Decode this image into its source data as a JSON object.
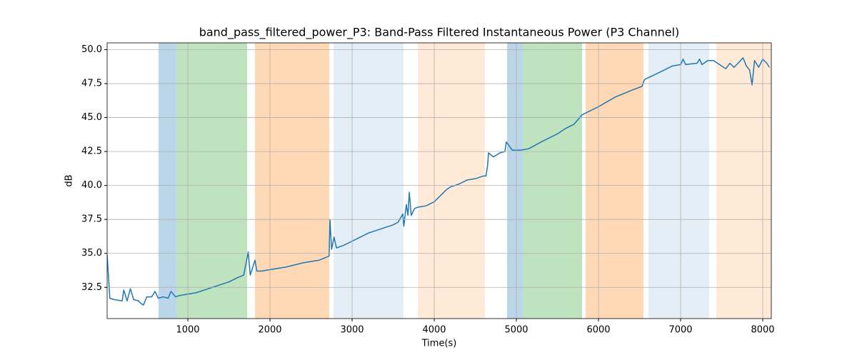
{
  "chart_data": {
    "type": "line",
    "title": "band_pass_filtered_power_P3: Band-Pass Filtered Instantaneous Power (P3 Channel)",
    "x_label": "Time(s)",
    "y_label": "dB",
    "xlim": [
      17,
      8104
    ],
    "ylim": [
      30.2,
      50.5
    ],
    "xticks": [
      1000,
      2000,
      3000,
      4000,
      5000,
      6000,
      7000,
      8000
    ],
    "yticks": [
      32.5,
      {
        "value": 35,
        "label": "35.0"
      },
      37.5,
      {
        "value": 40,
        "label": "40.0"
      },
      42.5,
      {
        "value": 45,
        "label": "45.0"
      },
      47.5,
      {
        "value": 50,
        "label": "50.0"
      }
    ],
    "grid": true,
    "color": "#1f77b4",
    "spans": [
      {
        "start": 643,
        "end": 861,
        "color": "#1f77b4",
        "opacity": 0.3
      },
      {
        "start": 861,
        "end": 1722,
        "color": "#2ca02c",
        "opacity": 0.3
      },
      {
        "start": 1817,
        "end": 2722,
        "color": "#ff7f0e",
        "opacity": 0.3
      },
      {
        "start": 2774,
        "end": 3626,
        "color": "#1f77b4",
        "opacity": 0.12
      },
      {
        "start": 3800,
        "end": 4617,
        "color": "#ff7f0e",
        "opacity": 0.16
      },
      {
        "start": 4887,
        "end": 5078,
        "color": "#1f77b4",
        "opacity": 0.3
      },
      {
        "start": 5078,
        "end": 5800,
        "color": "#2ca02c",
        "opacity": 0.3
      },
      {
        "start": 5843,
        "end": 6548,
        "color": "#ff7f0e",
        "opacity": 0.3
      },
      {
        "start": 6609,
        "end": 7348,
        "color": "#1f77b4",
        "opacity": 0.12
      },
      {
        "start": 7435,
        "end": 8104,
        "color": "#ff7f0e",
        "opacity": 0.16
      }
    ],
    "x": [
      17,
      50,
      100,
      200,
      220,
      260,
      300,
      340,
      400,
      430,
      460,
      500,
      560,
      600,
      640,
      700,
      760,
      795,
      850,
      900,
      1000,
      1100,
      1200,
      1300,
      1400,
      1500,
      1600,
      1680,
      1735,
      1760,
      1817,
      1840,
      1900,
      2000,
      2200,
      2400,
      2600,
      2720,
      2730,
      2750,
      2780,
      2810,
      2900,
      3000,
      3100,
      3200,
      3300,
      3400,
      3500,
      3560,
      3617,
      3630,
      3660,
      3680,
      3696,
      3720,
      3760,
      3800,
      3900,
      4000,
      4100,
      4150,
      4200,
      4300,
      4400,
      4500,
      4600,
      4630,
      4650,
      4661,
      4720,
      4800,
      4860,
      4878,
      4950,
      5050,
      5150,
      5300,
      5500,
      5600,
      5700,
      5800,
      5900,
      6000,
      6200,
      6400,
      6530,
      6560,
      6700,
      6800,
      6900,
      7000,
      7030,
      7060,
      7200,
      7230,
      7260,
      7330,
      7400,
      7500,
      7550,
      7600,
      7650,
      7700,
      7760,
      7800,
      7840,
      7870,
      7900,
      7950,
      8000,
      8050,
      8080
    ],
    "values": [
      34.9,
      31.7,
      31.6,
      31.5,
      32.3,
      31.5,
      32.4,
      31.6,
      31.5,
      31.3,
      31.2,
      31.8,
      31.8,
      32.2,
      31.7,
      31.8,
      31.7,
      32.2,
      31.8,
      31.9,
      32.0,
      32.1,
      32.3,
      32.5,
      32.7,
      32.9,
      33.2,
      33.4,
      35.1,
      33.4,
      34.5,
      33.7,
      33.7,
      33.8,
      34.0,
      34.3,
      34.5,
      34.8,
      37.5,
      35.3,
      36.2,
      35.4,
      35.6,
      35.9,
      36.2,
      36.5,
      36.7,
      36.9,
      37.1,
      37.3,
      37.9,
      37.0,
      38.6,
      37.8,
      39.5,
      37.8,
      38.3,
      38.4,
      38.5,
      38.8,
      39.4,
      39.7,
      39.9,
      40.1,
      40.4,
      40.5,
      40.7,
      40.7,
      41.5,
      42.4,
      42.1,
      42.4,
      42.5,
      43.2,
      42.6,
      42.6,
      42.7,
      43.2,
      43.8,
      44.2,
      44.5,
      45.2,
      45.5,
      45.8,
      46.5,
      47.0,
      47.3,
      47.8,
      48.2,
      48.5,
      48.8,
      48.9,
      49.3,
      48.9,
      49.0,
      49.3,
      48.9,
      49.2,
      49.2,
      48.8,
      48.6,
      49.0,
      48.7,
      49.0,
      49.4,
      48.8,
      48.5,
      47.4,
      49.2,
      48.7,
      49.3,
      49.0,
      48.7
    ]
  }
}
